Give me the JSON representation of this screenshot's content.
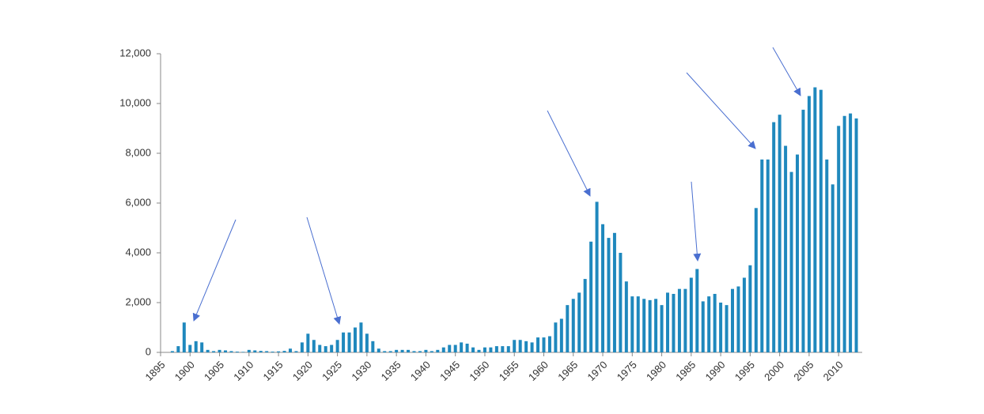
{
  "chart_data": {
    "type": "bar",
    "color": "#1f88bd",
    "x": [
      1895,
      1896,
      1897,
      1898,
      1899,
      1900,
      1901,
      1902,
      1903,
      1904,
      1905,
      1906,
      1907,
      1908,
      1909,
      1910,
      1911,
      1912,
      1913,
      1914,
      1915,
      1916,
      1917,
      1918,
      1919,
      1920,
      1921,
      1922,
      1923,
      1924,
      1925,
      1926,
      1927,
      1928,
      1929,
      1930,
      1931,
      1932,
      1933,
      1934,
      1935,
      1936,
      1937,
      1938,
      1939,
      1940,
      1941,
      1942,
      1943,
      1944,
      1945,
      1946,
      1947,
      1948,
      1949,
      1950,
      1951,
      1952,
      1953,
      1954,
      1955,
      1956,
      1957,
      1958,
      1959,
      1960,
      1961,
      1962,
      1963,
      1964,
      1965,
      1966,
      1967,
      1968,
      1969,
      1970,
      1971,
      1972,
      1973,
      1974,
      1975,
      1976,
      1977,
      1978,
      1979,
      1980,
      1981,
      1982,
      1983,
      1984,
      1985,
      1986,
      1987,
      1988,
      1989,
      1990,
      1991,
      1992,
      1993,
      1994,
      1995,
      1996,
      1997,
      1998,
      1999,
      2000,
      2001,
      2002,
      2003,
      2004,
      2005,
      2006,
      2007,
      2008,
      2009,
      2010,
      2011,
      2012,
      2013
    ],
    "values": [
      0,
      0,
      50,
      250,
      1200,
      300,
      450,
      400,
      100,
      50,
      100,
      80,
      50,
      30,
      20,
      100,
      80,
      60,
      50,
      30,
      40,
      60,
      150,
      50,
      400,
      750,
      500,
      300,
      250,
      300,
      500,
      800,
      800,
      1000,
      1200,
      750,
      450,
      150,
      50,
      50,
      100,
      100,
      100,
      50,
      50,
      100,
      50,
      100,
      200,
      300,
      300,
      400,
      350,
      200,
      100,
      200,
      200,
      250,
      250,
      250,
      500,
      500,
      450,
      400,
      600,
      600,
      650,
      1200,
      1350,
      1900,
      2150,
      2400,
      2950,
      4450,
      6050,
      5150,
      4600,
      4800,
      4000,
      2850,
      2250,
      2250,
      2150,
      2100,
      2150,
      1900,
      2400,
      2350,
      2550,
      2550,
      3000,
      3350,
      2050,
      2250,
      2350,
      2000,
      1900,
      2550,
      2650,
      3000,
      3500,
      5800,
      7750,
      7750,
      9250,
      9550,
      8300,
      7250,
      7950,
      9750,
      10300,
      10650,
      10550,
      7750,
      6750,
      9100,
      9500,
      9600,
      9400
    ],
    "xlim": [
      1895,
      2014
    ],
    "xticks": [
      1895,
      1900,
      1905,
      1910,
      1915,
      1920,
      1925,
      1930,
      1935,
      1940,
      1945,
      1950,
      1955,
      1960,
      1965,
      1970,
      1975,
      1980,
      1985,
      1990,
      1995,
      2000,
      2005,
      2010
    ],
    "ylim": [
      0,
      12000
    ],
    "yticks": [
      0,
      {
        "value": 2000,
        "label": "2,000"
      },
      {
        "value": 4000,
        "label": "4,000"
      },
      {
        "value": 6000,
        "label": "6,000"
      },
      {
        "value": 8000,
        "label": "8,000"
      },
      {
        "value": 10000,
        "label": "10,000"
      },
      {
        "value": 12000,
        "label": "12,000"
      }
    ]
  }
}
